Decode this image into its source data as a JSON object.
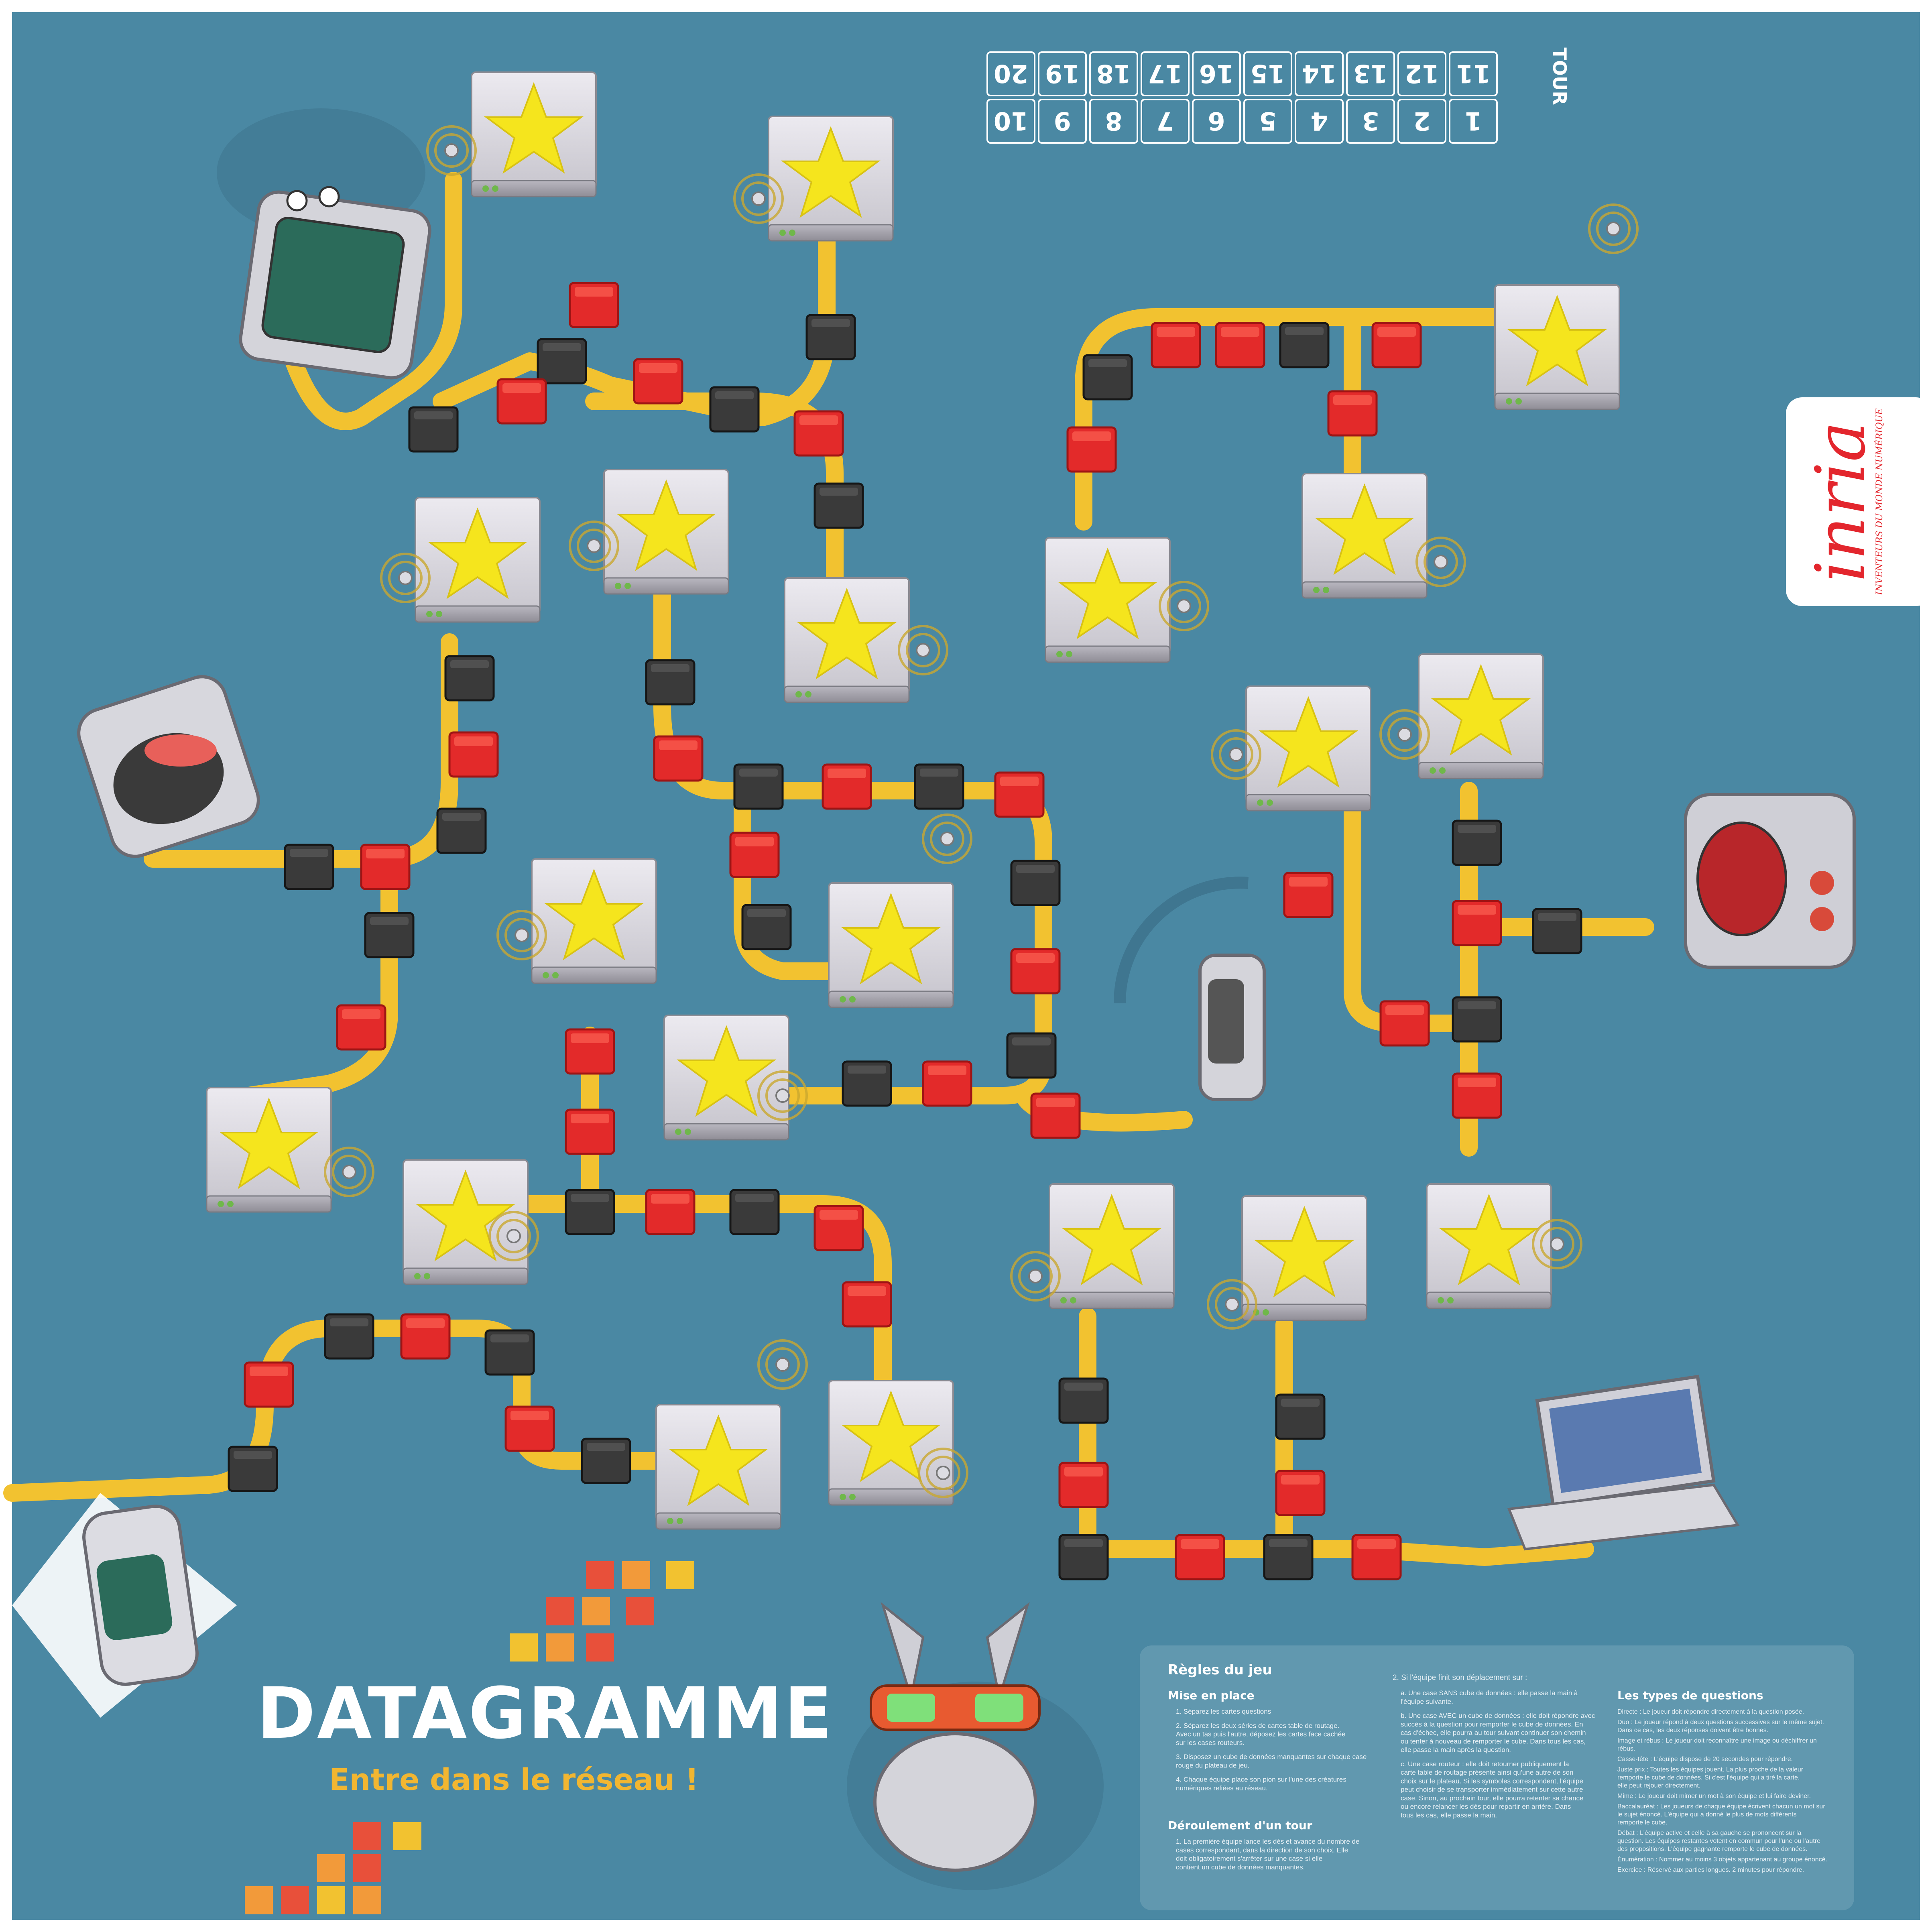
{
  "colors": {
    "background": "#4a88a3",
    "cable": "#f2c230",
    "red_box": "#e32a2a",
    "black_box": "#3a3a3a",
    "server": "#d9d9de",
    "star": "#f5e51d",
    "logo_red": "#e3262d",
    "panel": "#6a9db3"
  },
  "game": {
    "title": "DATAGRAMME",
    "subtitle": "Entre dans le réseau !"
  },
  "tour_table": {
    "label": "TOUR",
    "top_row": [
      "11",
      "12",
      "13",
      "14",
      "15",
      "16",
      "17",
      "18",
      "19",
      "20"
    ],
    "bottom_row": [
      "1",
      "2",
      "3",
      "4",
      "5",
      "6",
      "7",
      "8",
      "9",
      "10"
    ]
  },
  "logo": {
    "name": "inria",
    "tagline": "INVENTEURS DU MONDE NUMÉRIQUE"
  },
  "rules": {
    "title": "Règles du jeu",
    "setup_title": "Mise en place",
    "setup_items": [
      "1. Séparez les cartes questions",
      "2. Séparez les deux séries de cartes table de routage. Avec un tas puis l'autre, déposez les cartes face cachée sur les cases routeurs.",
      "3. Disposez un cube de données manquantes sur chaque case rouge du plateau de jeu.",
      "4. Chaque équipe place son pion sur l'une des créatures numériques reliées au réseau."
    ],
    "turn_title": "Déroulement d'un tour",
    "turn_items": [
      "1. La première équipe lance les dés et avance du nombre de cases correspondant, dans la direction de son choix. Elle doit obligatoirement s'arrêter sur une case si elle contient un cube de données manquantes."
    ],
    "moves_intro": "2. Si l'équipe finit son déplacement sur :",
    "moves_items": [
      "a. Une case SANS cube de données : elle passe la main à l'équipe suivante.",
      "b. Une case AVEC un cube de données : elle doit répondre avec succès à la question pour remporter le cube de données. En cas d'échec, elle pourra au tour suivant continuer son chemin ou tenter à nouveau de remporter le cube. Dans tous les cas, elle passe la main après la question.",
      "c. Une case routeur : elle doit retourner publiquement la carte table de routage présente ainsi qu'une autre de son choix sur le plateau. Si les symboles correspondent, l'équipe peut choisir de se transporter immédiatement sur cette autre case. Sinon, au prochain tour, elle pourra retenter sa chance ou encore relancer les dés pour repartir en arrière. Dans tous les cas, elle passe la main."
    ],
    "types_title": "Les types de questions",
    "types_items": [
      "Directe : Le joueur doit répondre directement à la question posée.",
      "Duo : Le joueur répond à deux questions successives sur le même sujet. Dans ce cas, les deux réponses doivent être bonnes.",
      "Image et rébus : Le joueur doit reconnaître une image ou déchiffrer un rébus.",
      "Casse-tête : L'équipe dispose de 20 secondes pour répondre.",
      "Juste prix : Toutes les équipes jouent. La plus proche de la valeur remporte le cube de données. Si c'est l'équipe qui a tiré la carte, elle peut rejouer directement.",
      "Mime : Le joueur doit mimer un mot à son équipe et lui faire deviner.",
      "Baccalauréat : Les joueurs de chaque équipe écrivent chacun un mot sur le sujet énoncé. L'équipe qui a donné le plus de mots différents remporte le cube.",
      "Débat : L'équipe active et celle à sa gauche se prononcent sur la question. Les équipes restantes votent en commun pour l'une ou l'autre des propositions. L'équipe gagnante remporte le cube de données.",
      "Énumération : Nommer au moins 3 objets appartenant au groupe énoncé.",
      "Exercice : Réservé aux parties longues. 2 minutes pour répondre."
    ]
  }
}
